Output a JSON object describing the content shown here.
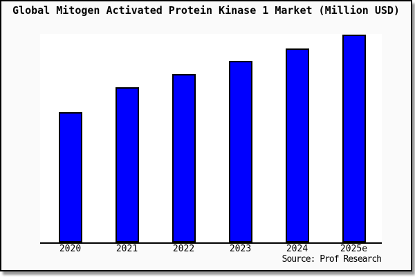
{
  "title": "Global Mitogen Activated Protein Kinase 1 Market (Million USD)",
  "source_note": "Source: Prof Research",
  "colors": {
    "bar_fill": "#0000ff",
    "bar_outline": "#000000",
    "panel_background": "#fafafa",
    "plot_background": "#ffffff",
    "axis": "#000000",
    "text": "#000000"
  },
  "chart_data": {
    "type": "bar",
    "title": "Global Mitogen Activated Protein Kinase 1 Market (Million USD)",
    "categories": [
      "2020",
      "2021",
      "2022",
      "2023",
      "2024",
      "2025e"
    ],
    "values": [
      62.5,
      74.8,
      81.1,
      87.4,
      93.4,
      100
    ],
    "values_unit": "relative height, % of tallest (2025e) bar; y-axis is unlabeled in the image",
    "xlabel": "",
    "ylabel": "",
    "ylim": [
      0,
      100
    ],
    "grid": false,
    "legend": "none",
    "annotations": [
      "Source: Prof Research"
    ]
  }
}
